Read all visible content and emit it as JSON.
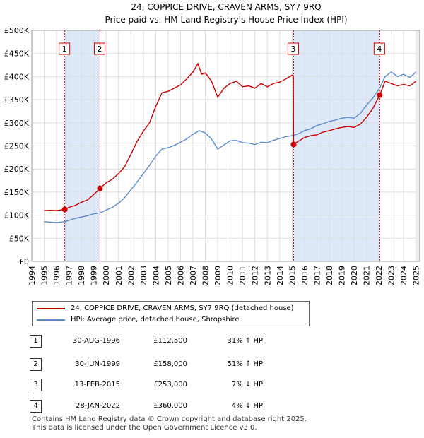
{
  "chart_data": {
    "type": "line",
    "title": "24, COPPICE DRIVE, CRAVEN ARMS, SY7 9RQ",
    "subtitle": "Price paid vs. HM Land Registry's House Price Index (HPI)",
    "xlabel": "",
    "ylabel": "",
    "xlim": [
      1994,
      2025.3
    ],
    "ylim": [
      0,
      500000
    ],
    "yticks": [
      {
        "value": 0,
        "label": "£0"
      },
      {
        "value": 50000,
        "label": "£50K"
      },
      {
        "value": 100000,
        "label": "£100K"
      },
      {
        "value": 150000,
        "label": "£150K"
      },
      {
        "value": 200000,
        "label": "£200K"
      },
      {
        "value": 250000,
        "label": "£250K"
      },
      {
        "value": 300000,
        "label": "£300K"
      },
      {
        "value": 350000,
        "label": "£350K"
      },
      {
        "value": 400000,
        "label": "£400K"
      },
      {
        "value": 450000,
        "label": "£450K"
      },
      {
        "value": 500000,
        "label": "£500K"
      }
    ],
    "xticks": [
      "1994",
      "1995",
      "1996",
      "1997",
      "1998",
      "1999",
      "2000",
      "2001",
      "2002",
      "2003",
      "2004",
      "2005",
      "2006",
      "2007",
      "2008",
      "2009",
      "2010",
      "2011",
      "2012",
      "2013",
      "2014",
      "2015",
      "2016",
      "2017",
      "2018",
      "2019",
      "2020",
      "2021",
      "2022",
      "2023",
      "2024",
      "2025"
    ],
    "grid": true,
    "series": [
      {
        "name": "24, COPPICE DRIVE, CRAVEN ARMS, SY7 9RQ (detached house)",
        "color": "#cc0000",
        "points": [
          [
            1995.0,
            110000
          ],
          [
            1995.5,
            110500
          ],
          [
            1996.0,
            110000
          ],
          [
            1996.66,
            112500
          ],
          [
            1997.0,
            117000
          ],
          [
            1997.5,
            121000
          ],
          [
            1998.0,
            128000
          ],
          [
            1998.5,
            133000
          ],
          [
            1999.0,
            145000
          ],
          [
            1999.5,
            158000
          ],
          [
            2000.0,
            170000
          ],
          [
            2000.5,
            178000
          ],
          [
            2001.0,
            190000
          ],
          [
            2001.5,
            205000
          ],
          [
            2002.0,
            232000
          ],
          [
            2002.5,
            260000
          ],
          [
            2003.0,
            282000
          ],
          [
            2003.5,
            300000
          ],
          [
            2004.0,
            335000
          ],
          [
            2004.5,
            365000
          ],
          [
            2005.0,
            368000
          ],
          [
            2005.5,
            375000
          ],
          [
            2006.0,
            382000
          ],
          [
            2006.5,
            395000
          ],
          [
            2007.0,
            410000
          ],
          [
            2007.4,
            428000
          ],
          [
            2007.7,
            405000
          ],
          [
            2008.0,
            408000
          ],
          [
            2008.5,
            390000
          ],
          [
            2009.0,
            355000
          ],
          [
            2009.5,
            375000
          ],
          [
            2010.0,
            385000
          ],
          [
            2010.5,
            390000
          ],
          [
            2011.0,
            378000
          ],
          [
            2011.5,
            380000
          ],
          [
            2012.0,
            375000
          ],
          [
            2012.5,
            385000
          ],
          [
            2013.0,
            378000
          ],
          [
            2013.5,
            385000
          ],
          [
            2014.0,
            388000
          ],
          [
            2014.5,
            395000
          ],
          [
            2015.0,
            403000
          ],
          [
            2015.1,
            402000
          ],
          [
            2015.12,
            253000
          ],
          [
            2015.5,
            260000
          ],
          [
            2016.0,
            268000
          ],
          [
            2016.5,
            272000
          ],
          [
            2017.0,
            274000
          ],
          [
            2017.5,
            280000
          ],
          [
            2018.0,
            283000
          ],
          [
            2018.5,
            287000
          ],
          [
            2019.0,
            290000
          ],
          [
            2019.5,
            292000
          ],
          [
            2020.0,
            290000
          ],
          [
            2020.5,
            297000
          ],
          [
            2021.0,
            312000
          ],
          [
            2021.5,
            330000
          ],
          [
            2022.07,
            360000
          ],
          [
            2022.5,
            390000
          ],
          [
            2023.0,
            385000
          ],
          [
            2023.5,
            380000
          ],
          [
            2024.0,
            383000
          ],
          [
            2024.5,
            380000
          ],
          [
            2025.0,
            390000
          ]
        ]
      },
      {
        "name": "HPI: Average price, detached house, Shropshire",
        "color": "#5b8ccc",
        "points": [
          [
            1995.0,
            86000
          ],
          [
            1995.5,
            85000
          ],
          [
            1996.0,
            84000
          ],
          [
            1996.66,
            86000
          ],
          [
            1997.0,
            89000
          ],
          [
            1997.5,
            93000
          ],
          [
            1998.0,
            96000
          ],
          [
            1998.5,
            99000
          ],
          [
            1999.0,
            103000
          ],
          [
            1999.5,
            105000
          ],
          [
            2000.0,
            111000
          ],
          [
            2000.5,
            117000
          ],
          [
            2001.0,
            126000
          ],
          [
            2001.5,
            138000
          ],
          [
            2002.0,
            155000
          ],
          [
            2002.5,
            172000
          ],
          [
            2003.0,
            190000
          ],
          [
            2003.5,
            208000
          ],
          [
            2004.0,
            228000
          ],
          [
            2004.5,
            243000
          ],
          [
            2005.0,
            246000
          ],
          [
            2005.5,
            251000
          ],
          [
            2006.0,
            258000
          ],
          [
            2006.5,
            265000
          ],
          [
            2007.0,
            275000
          ],
          [
            2007.5,
            283000
          ],
          [
            2008.0,
            278000
          ],
          [
            2008.5,
            265000
          ],
          [
            2009.0,
            243000
          ],
          [
            2009.5,
            252000
          ],
          [
            2010.0,
            261000
          ],
          [
            2010.5,
            262000
          ],
          [
            2011.0,
            257000
          ],
          [
            2011.5,
            256000
          ],
          [
            2012.0,
            253000
          ],
          [
            2012.5,
            258000
          ],
          [
            2013.0,
            257000
          ],
          [
            2013.5,
            262000
          ],
          [
            2014.0,
            266000
          ],
          [
            2014.5,
            270000
          ],
          [
            2015.0,
            272000
          ],
          [
            2015.5,
            276000
          ],
          [
            2016.0,
            283000
          ],
          [
            2016.5,
            287000
          ],
          [
            2017.0,
            294000
          ],
          [
            2017.5,
            298000
          ],
          [
            2018.0,
            303000
          ],
          [
            2018.5,
            306000
          ],
          [
            2019.0,
            310000
          ],
          [
            2019.5,
            312000
          ],
          [
            2020.0,
            310000
          ],
          [
            2020.5,
            320000
          ],
          [
            2021.0,
            338000
          ],
          [
            2021.5,
            353000
          ],
          [
            2022.07,
            375000
          ],
          [
            2022.5,
            400000
          ],
          [
            2023.0,
            410000
          ],
          [
            2023.5,
            400000
          ],
          [
            2024.0,
            405000
          ],
          [
            2024.5,
            398000
          ],
          [
            2025.0,
            410000
          ]
        ]
      }
    ],
    "sales": [
      {
        "num": "1",
        "date": "30-AUG-1996",
        "x": 1996.66,
        "price": 112500,
        "price_label": "£112,500",
        "rel": "31% ↑ HPI"
      },
      {
        "num": "2",
        "date": "30-JUN-1999",
        "x": 1999.5,
        "price": 158000,
        "price_label": "£158,000",
        "rel": "51% ↑ HPI"
      },
      {
        "num": "3",
        "date": "13-FEB-2015",
        "x": 2015.12,
        "price": 253000,
        "price_label": "£253,000",
        "rel": "7% ↓ HPI"
      },
      {
        "num": "4",
        "date": "28-JAN-2022",
        "x": 2022.07,
        "price": 360000,
        "price_label": "£360,000",
        "rel": "4% ↓ HPI"
      }
    ],
    "shaded_ranges": [
      [
        1996.66,
        1999.5
      ],
      [
        2015.12,
        2022.07
      ]
    ],
    "colors": {
      "grid": "#dddddd",
      "shade": "#dde8f8",
      "vline": "#cc0000"
    }
  },
  "legend": {
    "property": "24, COPPICE DRIVE, CRAVEN ARMS, SY7 9RQ (detached house)",
    "hpi": "HPI: Average price, detached house, Shropshire"
  },
  "footer": {
    "line1": "Contains HM Land Registry data © Crown copyright and database right 2025.",
    "line2": "This data is licensed under the Open Government Licence v3.0."
  }
}
